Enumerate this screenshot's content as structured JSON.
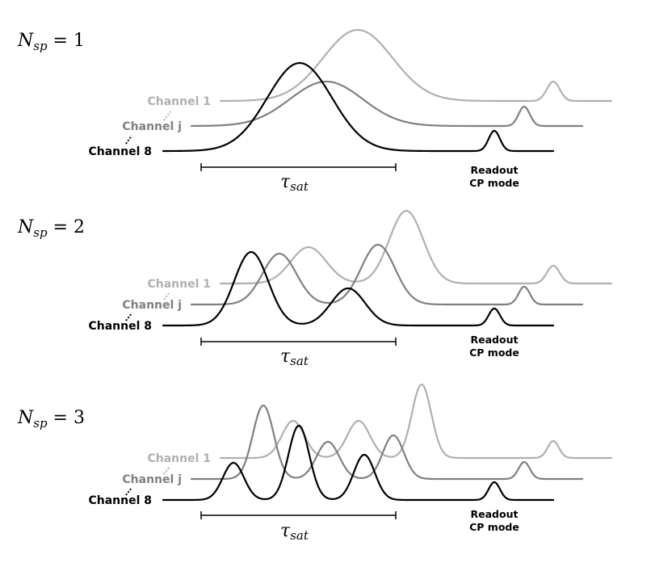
{
  "colors": {
    "channel_1": "#b0b0b0",
    "channel_j": "#808080",
    "channel_8": "#000000"
  },
  "panels": [
    {
      "n_sp_symbol": "N",
      "n_sp_subscript": "sp",
      "n_sp_rhs": " = 1",
      "channel_labels": [
        "Channel 1",
        "Channel j",
        "Channel 8"
      ],
      "tau_symbol": "τ",
      "tau_subscript": "sat",
      "readout_lines": [
        "Readout",
        "CP mode"
      ],
      "peaks_channel_1": 1,
      "peaks_channel_j": 1,
      "peaks_channel_8": 1
    },
    {
      "n_sp_symbol": "N",
      "n_sp_subscript": "sp",
      "n_sp_rhs": " = 2",
      "channel_labels": [
        "Channel 1",
        "Channel j",
        "Channel 8"
      ],
      "tau_symbol": "τ",
      "tau_subscript": "sat",
      "readout_lines": [
        "Readout",
        "CP mode"
      ],
      "peaks_channel_1": 2,
      "peaks_channel_j": 2,
      "peaks_channel_8": 2
    },
    {
      "n_sp_symbol": "N",
      "n_sp_subscript": "sp",
      "n_sp_rhs": " = 3",
      "channel_labels": [
        "Channel 1",
        "Channel j",
        "Channel 8"
      ],
      "tau_symbol": "τ",
      "tau_subscript": "sat",
      "readout_lines": [
        "Readout",
        "CP mode"
      ],
      "peaks_channel_1": 3,
      "peaks_channel_j": 3,
      "peaks_channel_8": 3
    }
  ]
}
